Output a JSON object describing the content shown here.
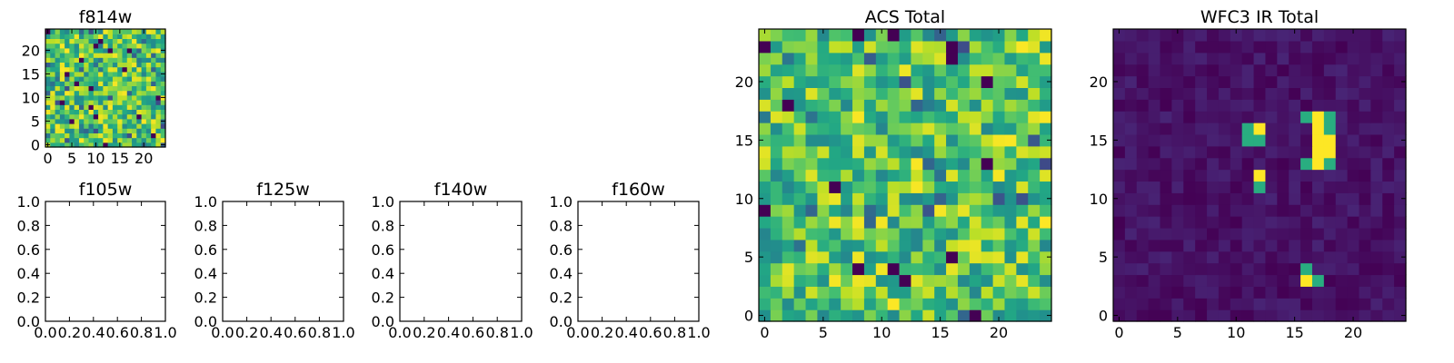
{
  "figure": {
    "background": "#ffffff"
  },
  "chart_data": [
    {
      "id": "f814w",
      "type": "heatmap",
      "title": "f814w",
      "xticks": [
        "0",
        "5",
        "10",
        "15",
        "20"
      ],
      "yticks": [
        "0",
        "5",
        "10",
        "15",
        "20"
      ],
      "xlim": [
        -0.5,
        24.5
      ],
      "ylim": [
        -0.5,
        24.5
      ],
      "grid_size": 25,
      "pattern": "noise",
      "colormap": "viridis",
      "value_range": [
        0.45,
        1.0
      ],
      "seed": 17
    },
    {
      "id": "f105w",
      "type": "empty",
      "title": "f105w",
      "xticks": [
        "0.0",
        "0.2",
        "0.4",
        "0.6",
        "0.8",
        "1.0"
      ],
      "yticks": [
        "0.0",
        "0.2",
        "0.4",
        "0.6",
        "0.8",
        "1.0"
      ],
      "xlim": [
        0,
        1
      ],
      "ylim": [
        0,
        1
      ]
    },
    {
      "id": "f125w",
      "type": "empty",
      "title": "f125w",
      "xticks": [
        "0.0",
        "0.2",
        "0.4",
        "0.6",
        "0.8",
        "1.0"
      ],
      "yticks": [
        "0.0",
        "0.2",
        "0.4",
        "0.6",
        "0.8",
        "1.0"
      ],
      "xlim": [
        0,
        1
      ],
      "ylim": [
        0,
        1
      ]
    },
    {
      "id": "f140w",
      "type": "empty",
      "title": "f140w",
      "xticks": [
        "0.0",
        "0.2",
        "0.4",
        "0.6",
        "0.8",
        "1.0"
      ],
      "yticks": [
        "0.0",
        "0.2",
        "0.4",
        "0.6",
        "0.8",
        "1.0"
      ],
      "xlim": [
        0,
        1
      ],
      "ylim": [
        0,
        1
      ]
    },
    {
      "id": "f160w",
      "type": "empty",
      "title": "f160w",
      "xticks": [
        "0.0",
        "0.2",
        "0.4",
        "0.6",
        "0.8",
        "1.0"
      ],
      "yticks": [
        "0.0",
        "0.2",
        "0.4",
        "0.6",
        "0.8",
        "1.0"
      ],
      "xlim": [
        0,
        1
      ],
      "ylim": [
        0,
        1
      ]
    },
    {
      "id": "acs-total",
      "type": "heatmap",
      "title": "ACS Total",
      "xticks": [
        "0",
        "5",
        "10",
        "15",
        "20"
      ],
      "yticks": [
        "0",
        "5",
        "10",
        "15",
        "20"
      ],
      "xlim": [
        -0.5,
        24.5
      ],
      "ylim": [
        -0.5,
        24.5
      ],
      "grid_size": 25,
      "pattern": "noise",
      "colormap": "viridis",
      "value_range": [
        0.45,
        1.0
      ],
      "seed": 53
    },
    {
      "id": "wfc3-ir-total",
      "type": "heatmap",
      "title": "WFC3 IR Total",
      "xticks": [
        "0",
        "5",
        "10",
        "15",
        "20"
      ],
      "yticks": [
        "0",
        "5",
        "10",
        "15",
        "20"
      ],
      "xlim": [
        -0.5,
        24.5
      ],
      "ylim": [
        -0.5,
        24.5
      ],
      "grid_size": 25,
      "pattern": "sparse",
      "colormap": "viridis",
      "background_range": [
        0.0,
        0.1
      ],
      "seed": 91,
      "hotspots": [
        {
          "x": 16,
          "y": 17,
          "v": 0.62
        },
        {
          "x": 17,
          "y": 17,
          "v": 1.0
        },
        {
          "x": 18,
          "y": 17,
          "v": 0.62
        },
        {
          "x": 17,
          "y": 16,
          "v": 1.0
        },
        {
          "x": 18,
          "y": 16,
          "v": 0.62
        },
        {
          "x": 17,
          "y": 15,
          "v": 1.0
        },
        {
          "x": 18,
          "y": 15,
          "v": 1.0
        },
        {
          "x": 17,
          "y": 14,
          "v": 1.0
        },
        {
          "x": 18,
          "y": 14,
          "v": 1.0
        },
        {
          "x": 16,
          "y": 13,
          "v": 0.62
        },
        {
          "x": 17,
          "y": 13,
          "v": 1.0
        },
        {
          "x": 18,
          "y": 13,
          "v": 0.62
        },
        {
          "x": 11,
          "y": 16,
          "v": 0.62
        },
        {
          "x": 12,
          "y": 16,
          "v": 1.0
        },
        {
          "x": 11,
          "y": 15,
          "v": 0.62
        },
        {
          "x": 12,
          "y": 15,
          "v": 0.62
        },
        {
          "x": 12,
          "y": 12,
          "v": 1.0
        },
        {
          "x": 12,
          "y": 11,
          "v": 0.62
        },
        {
          "x": 16,
          "y": 4,
          "v": 0.62
        },
        {
          "x": 16,
          "y": 3,
          "v": 1.0
        },
        {
          "x": 17,
          "y": 3,
          "v": 0.62
        }
      ]
    }
  ]
}
